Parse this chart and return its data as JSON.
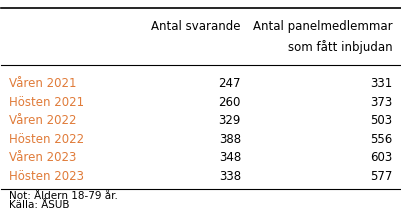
{
  "col_headers_line1": [
    "",
    "Antal svarande",
    "Antal panelmedlemmar"
  ],
  "col_headers_line2": [
    "",
    "",
    "som fått inbjudan"
  ],
  "rows": [
    [
      "Våren 2021",
      "247",
      "331"
    ],
    [
      "Hösten 2021",
      "260",
      "373"
    ],
    [
      "Våren 2022",
      "329",
      "503"
    ],
    [
      "Hösten 2022",
      "388",
      "556"
    ],
    [
      "Våren 2023",
      "348",
      "603"
    ],
    [
      "Hösten 2023",
      "338",
      "577"
    ]
  ],
  "footnotes": [
    "Not: Åldern 18-79 år.",
    "Källa: ÅSUB"
  ],
  "text_color_row": "#e07b39",
  "text_color_data": "#000000",
  "text_color_header": "#000000",
  "font_size": 8.5,
  "header_font_size": 8.5,
  "footnote_font_size": 7.5,
  "bg_color": "#ffffff"
}
